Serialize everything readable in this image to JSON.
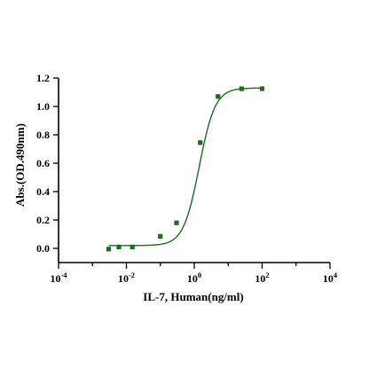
{
  "chart_data": {
    "type": "scatter",
    "title": "",
    "xlabel": "IL-7, Human(ng/ml)",
    "ylabel": "Abs.(OD.490nm)",
    "x_scale": "log",
    "xlim": [
      0.0001,
      10000
    ],
    "ylim": [
      -0.1,
      1.2
    ],
    "x_ticks": [
      {
        "value": 0.0001,
        "base": "10",
        "exp": "-4"
      },
      {
        "value": 0.01,
        "base": "10",
        "exp": "-2"
      },
      {
        "value": 1,
        "base": "10",
        "exp": "0"
      },
      {
        "value": 100,
        "base": "10",
        "exp": "2"
      },
      {
        "value": 10000,
        "base": "10",
        "exp": "4"
      }
    ],
    "y_ticks": [
      {
        "value": 0.0,
        "label": "0.0"
      },
      {
        "value": 0.2,
        "label": "0.2"
      },
      {
        "value": 0.4,
        "label": "0.4"
      },
      {
        "value": 0.6,
        "label": "0.6"
      },
      {
        "value": 0.8,
        "label": "0.8"
      },
      {
        "value": 1.0,
        "label": "1.0"
      },
      {
        "value": 1.2,
        "label": "1.2"
      }
    ],
    "grid": false,
    "legend": "none",
    "series": [
      {
        "points": [
          {
            "x": 0.003,
            "y": -0.005
          },
          {
            "x": 0.006,
            "y": 0.01
          },
          {
            "x": 0.015,
            "y": 0.01
          },
          {
            "x": 0.1,
            "y": 0.085
          },
          {
            "x": 0.3,
            "y": 0.18
          },
          {
            "x": 1.5,
            "y": 0.745
          },
          {
            "x": 5,
            "y": 1.07
          },
          {
            "x": 25,
            "y": 1.125
          },
          {
            "x": 100,
            "y": 1.125
          }
        ],
        "fit": {
          "model": "4PL",
          "bottom": 0.02,
          "top": 1.13,
          "ec50": 1.4,
          "hill": 1.85,
          "x_range": [
            0.003,
            100
          ]
        },
        "color": "#1d6b1d"
      }
    ]
  }
}
